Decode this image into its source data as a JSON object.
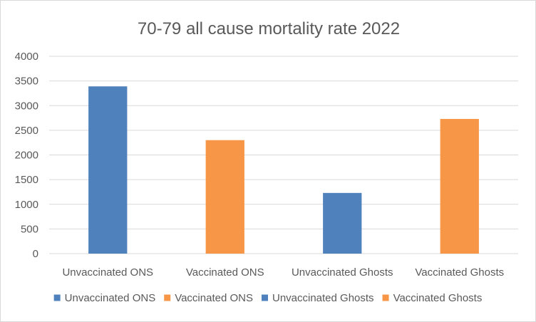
{
  "chart_data": {
    "type": "bar",
    "title": "70-79 all cause mortality rate 2022",
    "categories": [
      "Unvaccinated ONS",
      "Vaccinated ONS",
      "Unvaccinated Ghosts",
      "Vaccinated Ghosts"
    ],
    "values": [
      3390,
      2300,
      1230,
      2730
    ],
    "bar_colors": [
      "#4f81bd",
      "#f79646",
      "#4f81bd",
      "#f79646"
    ],
    "ylim": [
      0,
      4000
    ],
    "yticks": [
      "0",
      "500",
      "1000",
      "1500",
      "2000",
      "2500",
      "3000",
      "3500",
      "4000"
    ],
    "grid": true,
    "legend": {
      "placement": "bottom",
      "entries": [
        {
          "name": "Unvaccinated ONS",
          "color": "#4f81bd"
        },
        {
          "name": "Vaccinated ONS",
          "color": "#f79646"
        },
        {
          "name": "Unvaccinated Ghosts",
          "color": "#4f81bd"
        },
        {
          "name": "Vaccinated Ghosts",
          "color": "#f79646"
        }
      ]
    }
  }
}
